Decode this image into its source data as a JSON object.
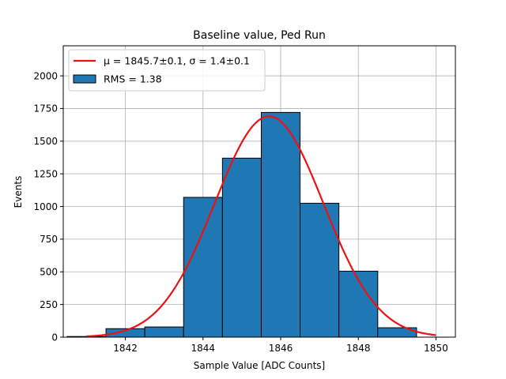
{
  "chart_data": {
    "type": "bar",
    "title": "Baseline value, Ped Run",
    "xlabel": "Sample Value [ADC Counts]",
    "ylabel": "Events",
    "xlim": [
      1840.4,
      1850.5
    ],
    "ylim": [
      0,
      2230
    ],
    "xticks": [
      1842,
      1844,
      1846,
      1848,
      1850
    ],
    "yticks": [
      0,
      250,
      500,
      750,
      1000,
      1250,
      1500,
      1750,
      2000
    ],
    "grid": true,
    "bins": [
      {
        "left": 1840.5,
        "right": 1841.5,
        "value": 5
      },
      {
        "left": 1841.5,
        "right": 1842.5,
        "value": 65
      },
      {
        "left": 1842.5,
        "right": 1843.5,
        "value": 78
      },
      {
        "left": 1843.5,
        "right": 1844.5,
        "value": 1070
      },
      {
        "left": 1844.5,
        "right": 1845.5,
        "value": 1370
      },
      {
        "left": 1845.5,
        "right": 1846.5,
        "value": 1720
      },
      {
        "left": 1846.5,
        "right": 1847.5,
        "value": 1025
      },
      {
        "left": 1847.5,
        "right": 1848.5,
        "value": 505
      },
      {
        "left": 1848.5,
        "right": 1849.5,
        "value": 72
      }
    ],
    "fit": {
      "name": "Gaussian fit",
      "mu": 1845.7,
      "sigma": 1.4,
      "amplitude": 1690,
      "x_range": [
        1841.0,
        1850.0
      ],
      "color": "#ee1111"
    },
    "bar_color": "#1f77b4",
    "legend": {
      "position": "upper-left",
      "entries": [
        {
          "label": "μ = 1845.7±0.1, σ = 1.4±0.1",
          "kind": "line"
        },
        {
          "label": "RMS = 1.38",
          "kind": "patch"
        }
      ]
    }
  }
}
